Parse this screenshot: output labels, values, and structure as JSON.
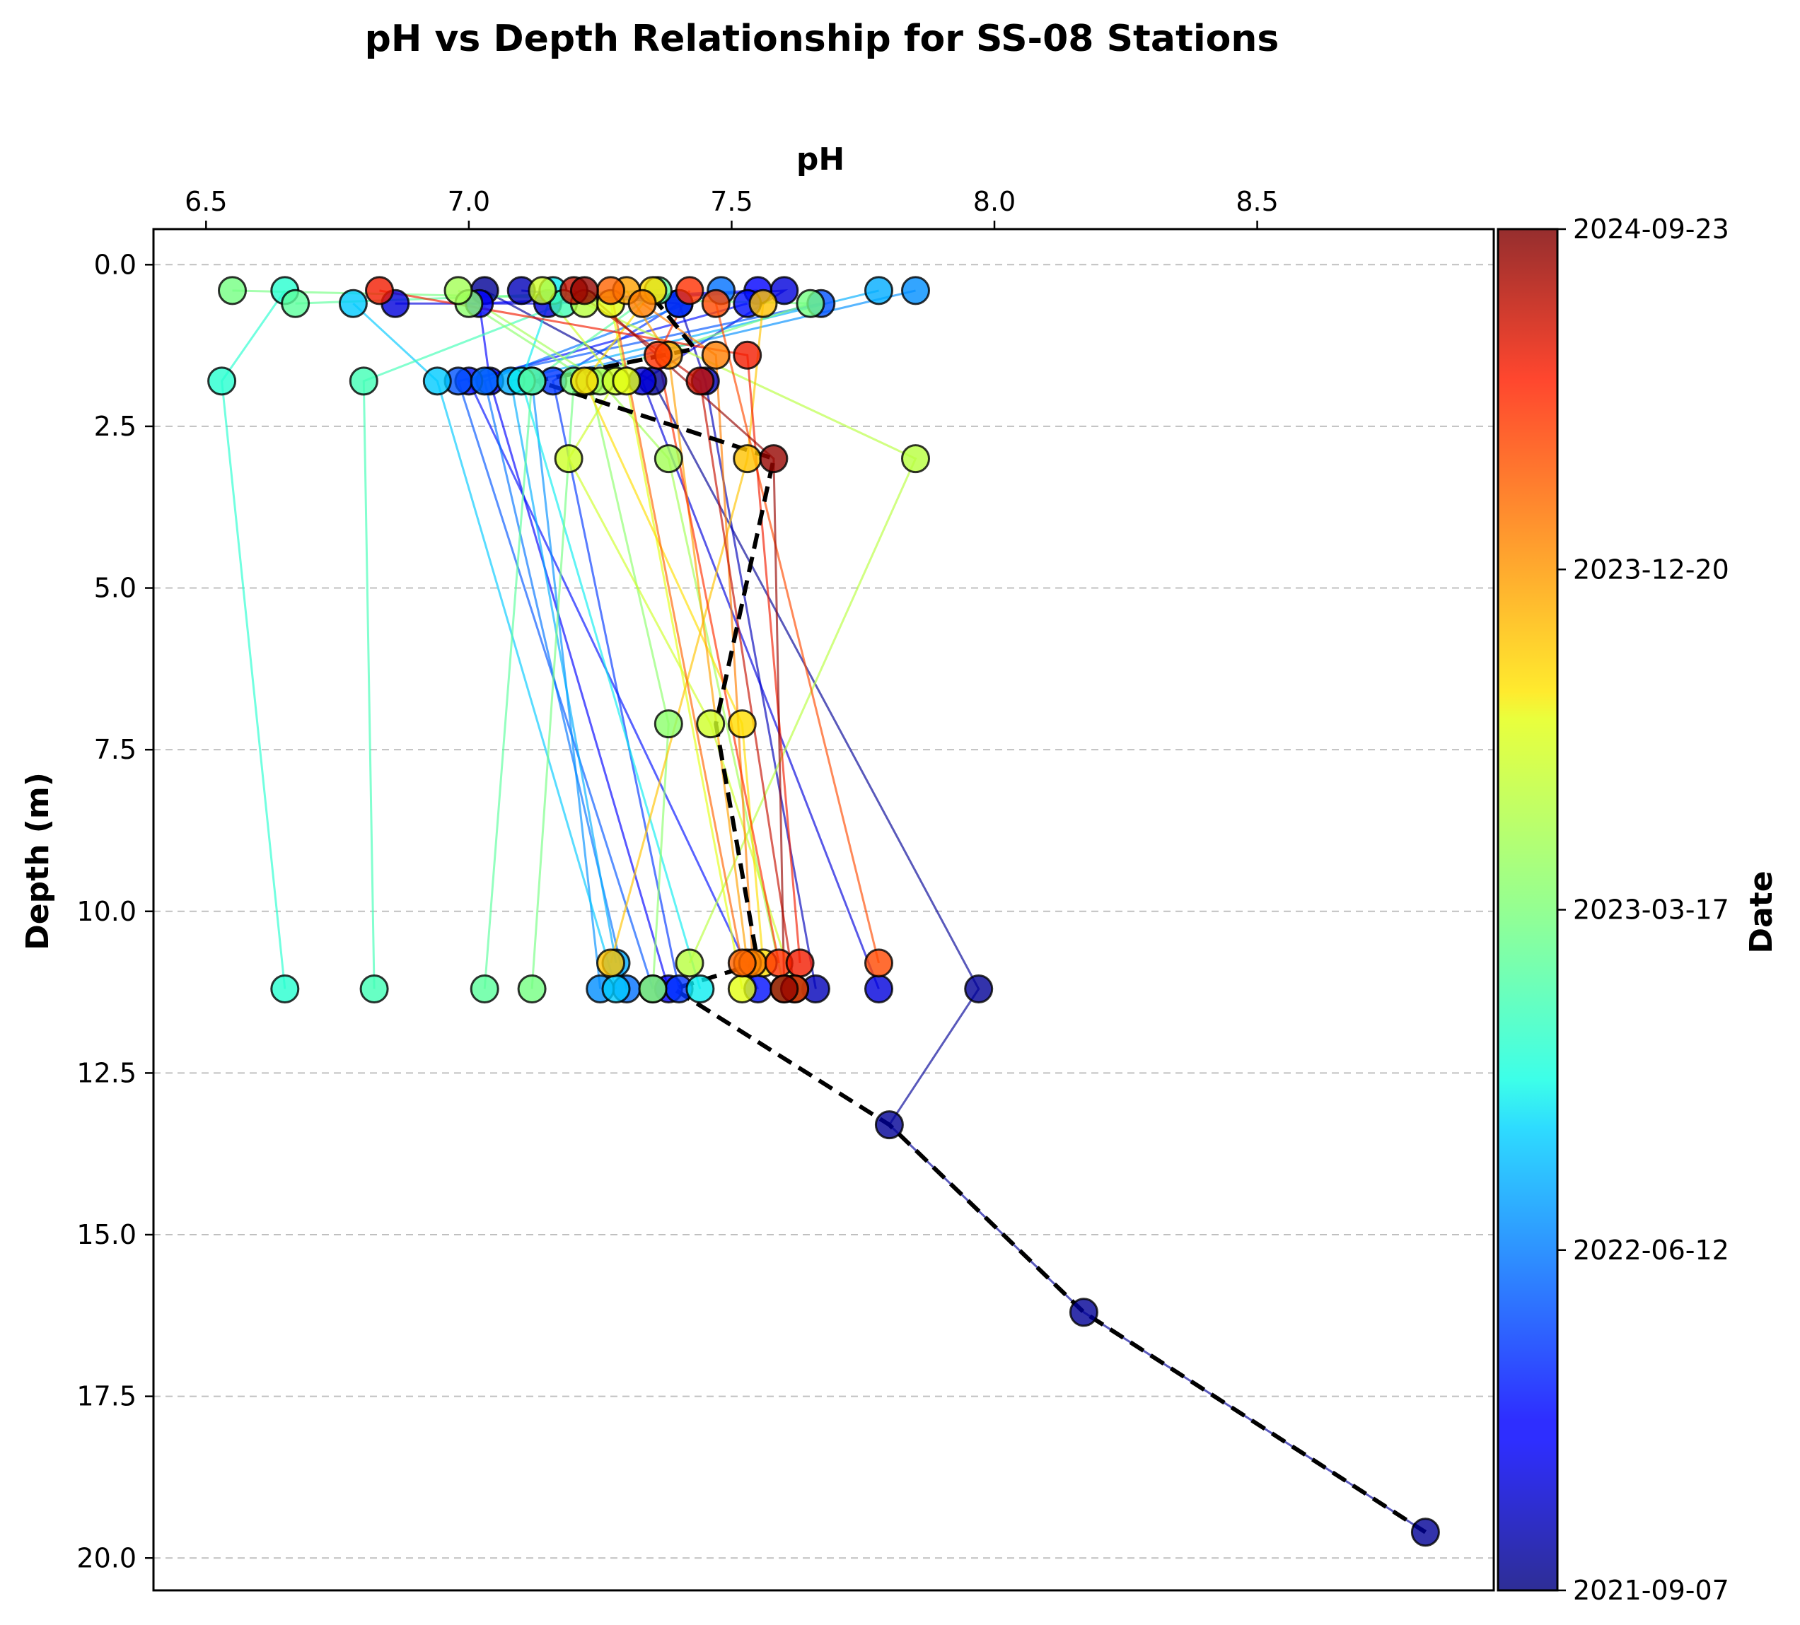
{
  "chart_data": {
    "type": "scatter",
    "title": "pH vs Depth Relationship for SS-08 Stations",
    "xlabel": "pH",
    "ylabel": "Depth (m)",
    "colorbar_label": "Date",
    "xlim": [
      6.4,
      8.95
    ],
    "ylim": [
      20.5,
      -0.55
    ],
    "x_axis_position": "top",
    "y_inverted": true,
    "grid": "horizontal dashed",
    "x_ticks": [
      "6.5",
      "7.0",
      "7.5",
      "8.0",
      "8.5"
    ],
    "y_ticks": [
      "0.0",
      "2.5",
      "5.0",
      "7.5",
      "10.0",
      "12.5",
      "15.0",
      "17.5",
      "20.0"
    ],
    "colorbar_ticks": [
      {
        "label": "2024-09-23",
        "t": 1.0
      },
      {
        "label": "2023-12-20",
        "t": 0.75
      },
      {
        "label": "2023-03-17",
        "t": 0.5
      },
      {
        "label": "2022-06-12",
        "t": 0.25
      },
      {
        "label": "2021-09-07",
        "t": 0.0
      }
    ],
    "mean_profile": [
      [
        7.35,
        0.5
      ],
      [
        7.43,
        1.3
      ],
      [
        7.13,
        1.8
      ],
      [
        7.58,
        3.0
      ],
      [
        7.47,
        7.1
      ],
      [
        7.55,
        10.8
      ],
      [
        7.39,
        11.2
      ],
      [
        7.8,
        13.3
      ],
      [
        8.17,
        16.2
      ],
      [
        8.82,
        19.6
      ]
    ],
    "series": [
      {
        "t": 0.02,
        "points": [
          [
            7.03,
            0.4
          ],
          [
            7.35,
            1.8
          ],
          [
            7.97,
            11.2
          ],
          [
            7.8,
            13.3
          ],
          [
            8.17,
            16.2
          ],
          [
            8.82,
            19.6
          ]
        ]
      },
      {
        "t": 0.05,
        "points": [
          [
            7.1,
            0.4
          ],
          [
            7.4,
            0.6
          ],
          [
            7.45,
            1.8
          ],
          [
            7.66,
            11.2
          ]
        ]
      },
      {
        "t": 0.08,
        "points": [
          [
            6.86,
            0.6
          ],
          [
            7.15,
            0.6
          ],
          [
            7.6,
            0.4
          ],
          [
            7.33,
            1.8
          ],
          [
            7.78,
            11.2
          ]
        ]
      },
      {
        "t": 0.11,
        "points": [
          [
            7.55,
            0.4
          ],
          [
            7.02,
            0.6
          ],
          [
            7.04,
            1.8
          ],
          [
            7.38,
            11.2
          ]
        ]
      },
      {
        "t": 0.14,
        "points": [
          [
            7.53,
            0.6
          ],
          [
            7.0,
            1.8
          ],
          [
            7.55,
            11.2
          ]
        ]
      },
      {
        "t": 0.18,
        "points": [
          [
            7.4,
            0.6
          ],
          [
            7.16,
            1.8
          ],
          [
            7.4,
            11.2
          ]
        ]
      },
      {
        "t": 0.21,
        "points": [
          [
            7.67,
            0.6
          ],
          [
            6.98,
            1.8
          ],
          [
            7.35,
            11.2
          ]
        ]
      },
      {
        "t": 0.24,
        "points": [
          [
            7.48,
            0.4
          ],
          [
            7.03,
            1.8
          ],
          [
            7.3,
            11.2
          ]
        ]
      },
      {
        "t": 0.27,
        "points": [
          [
            7.85,
            0.4
          ],
          [
            7.12,
            1.8
          ],
          [
            7.25,
            11.2
          ]
        ]
      },
      {
        "t": 0.3,
        "points": [
          [
            7.78,
            0.4
          ],
          [
            7.08,
            1.8
          ],
          [
            7.28,
            10.8
          ]
        ]
      },
      {
        "t": 0.33,
        "points": [
          [
            6.78,
            0.6
          ],
          [
            6.94,
            1.8
          ],
          [
            7.28,
            11.2
          ]
        ]
      },
      {
        "t": 0.36,
        "points": [
          [
            7.16,
            0.4
          ],
          [
            7.1,
            1.8
          ],
          [
            7.44,
            11.2
          ]
        ]
      },
      {
        "t": 0.4,
        "points": [
          [
            6.65,
            0.4
          ],
          [
            6.53,
            1.8
          ],
          [
            6.65,
            11.2
          ]
        ]
      },
      {
        "t": 0.43,
        "points": [
          [
            7.18,
            0.6
          ],
          [
            6.8,
            1.8
          ],
          [
            6.82,
            11.2
          ]
        ]
      },
      {
        "t": 0.46,
        "points": [
          [
            6.67,
            0.6
          ],
          [
            7.36,
            0.4
          ],
          [
            7.12,
            1.8
          ],
          [
            7.03,
            11.2
          ]
        ]
      },
      {
        "t": 0.49,
        "points": [
          [
            6.55,
            0.4
          ],
          [
            7.65,
            0.6
          ],
          [
            7.2,
            1.8
          ],
          [
            7.12,
            11.2
          ]
        ]
      },
      {
        "t": 0.52,
        "points": [
          [
            7.0,
            0.6
          ],
          [
            7.23,
            1.8
          ],
          [
            7.38,
            7.1
          ],
          [
            7.35,
            11.2
          ]
        ]
      },
      {
        "t": 0.55,
        "points": [
          [
            6.98,
            0.4
          ],
          [
            7.25,
            1.8
          ],
          [
            7.38,
            3.0
          ],
          [
            7.6,
            11.2
          ]
        ]
      },
      {
        "t": 0.58,
        "points": [
          [
            7.22,
            0.6
          ],
          [
            7.85,
            3.0
          ],
          [
            7.42,
            10.8
          ]
        ]
      },
      {
        "t": 0.61,
        "points": [
          [
            7.14,
            0.4
          ],
          [
            7.28,
            1.8
          ],
          [
            7.19,
            3.0
          ],
          [
            7.46,
            7.1
          ],
          [
            7.62,
            11.2
          ]
        ]
      },
      {
        "t": 0.64,
        "points": [
          [
            7.27,
            0.6
          ],
          [
            7.3,
            1.8
          ],
          [
            7.52,
            11.2
          ]
        ]
      },
      {
        "t": 0.67,
        "points": [
          [
            7.35,
            0.4
          ],
          [
            7.22,
            1.8
          ],
          [
            7.52,
            7.1
          ],
          [
            7.56,
            10.8
          ]
        ]
      },
      {
        "t": 0.7,
        "points": [
          [
            7.56,
            0.6
          ],
          [
            7.53,
            3.0
          ],
          [
            7.27,
            10.8
          ]
        ]
      },
      {
        "t": 0.74,
        "points": [
          [
            7.3,
            0.4
          ],
          [
            7.38,
            1.4
          ],
          [
            7.53,
            10.8
          ]
        ]
      },
      {
        "t": 0.78,
        "points": [
          [
            7.33,
            0.6
          ],
          [
            7.47,
            1.4
          ],
          [
            7.54,
            10.8
          ]
        ]
      },
      {
        "t": 0.81,
        "points": [
          [
            7.27,
            0.4
          ],
          [
            7.52,
            10.8
          ]
        ]
      },
      {
        "t": 0.84,
        "points": [
          [
            7.47,
            0.6
          ],
          [
            7.78,
            10.8
          ]
        ]
      },
      {
        "t": 0.87,
        "points": [
          [
            7.42,
            0.4
          ],
          [
            7.36,
            1.4
          ],
          [
            7.59,
            10.8
          ]
        ]
      },
      {
        "t": 0.9,
        "points": [
          [
            6.83,
            0.4
          ],
          [
            7.53,
            1.4
          ],
          [
            7.63,
            10.8
          ]
        ]
      },
      {
        "t": 0.94,
        "points": [
          [
            7.2,
            0.4
          ],
          [
            7.44,
            1.8
          ],
          [
            7.62,
            11.2
          ]
        ]
      },
      {
        "t": 0.98,
        "points": [
          [
            7.22,
            0.4
          ],
          [
            7.58,
            3.0
          ],
          [
            7.6,
            11.2
          ]
        ]
      }
    ]
  }
}
